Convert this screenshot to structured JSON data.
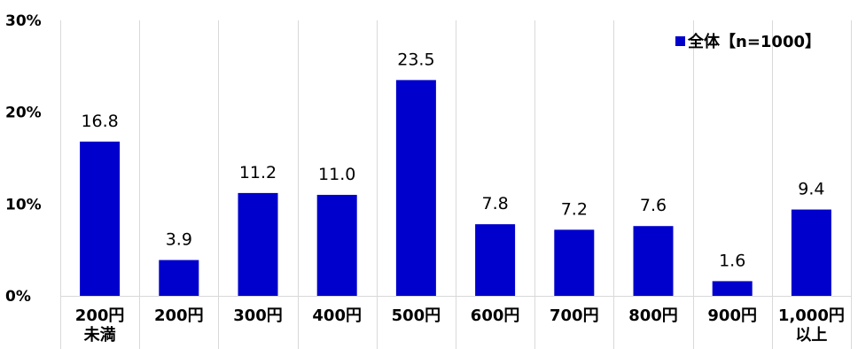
{
  "chart_data": {
    "type": "bar",
    "categories": [
      [
        "200円",
        "未満"
      ],
      [
        "200円"
      ],
      [
        "300円"
      ],
      [
        "400円"
      ],
      [
        "500円"
      ],
      [
        "600円"
      ],
      [
        "700円"
      ],
      [
        "800円"
      ],
      [
        "900円"
      ],
      [
        "1,000円",
        "以上"
      ]
    ],
    "series": [
      {
        "name": "全体【n=1000】",
        "color": "#0000CC",
        "values": [
          16.8,
          3.9,
          11.2,
          11.0,
          23.5,
          7.8,
          7.2,
          7.6,
          1.6,
          9.4
        ],
        "value_labels": [
          "16.8",
          "3.9",
          "11.2",
          "11.0",
          "23.5",
          "7.8",
          "7.2",
          "7.6",
          "1.6",
          "9.4"
        ]
      }
    ],
    "ylim": [
      0,
      30
    ],
    "y_ticks": [
      0,
      10,
      20,
      30
    ],
    "y_tick_labels": [
      "0%",
      "10%",
      "20%",
      "30%"
    ],
    "grid": "vertical category separators",
    "legend_position": "top-right"
  }
}
